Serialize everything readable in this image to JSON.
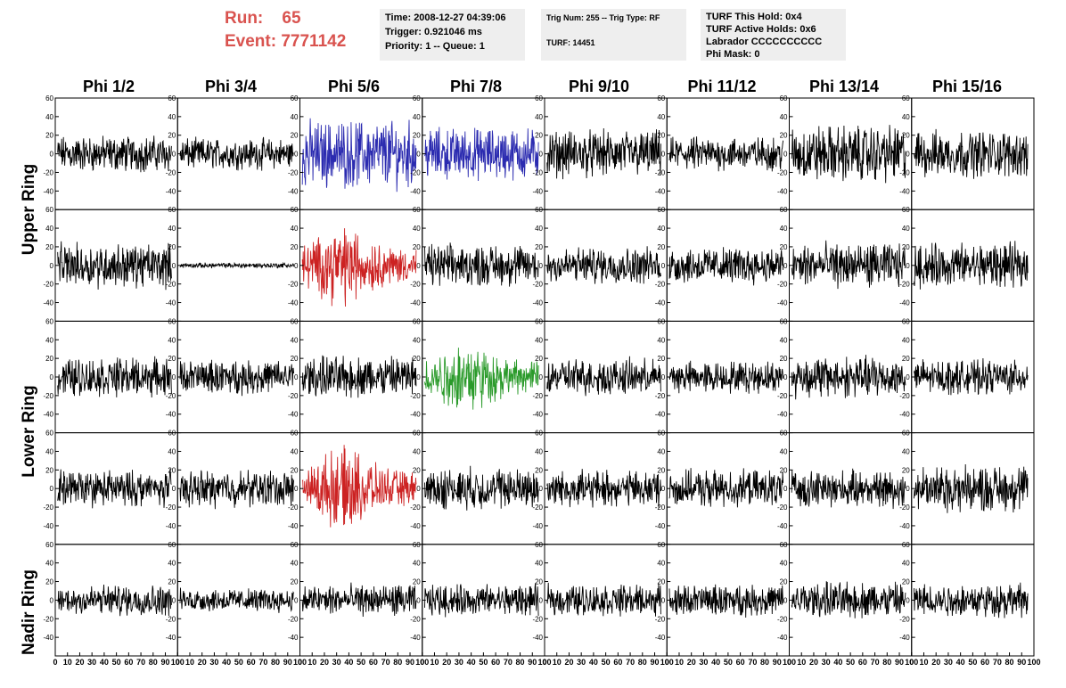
{
  "header": {
    "run_label": "Run:",
    "run_value": "65",
    "event_label": "Event:",
    "event_value": "7771142"
  },
  "info_boxes": {
    "time": "Time: 2008-12-27 04:39:06",
    "trigger": "Trigger: 0.921046 ms",
    "priority": "Priority: 1 -- Queue: 1",
    "trig_num": "Trig Num: 255 -- Trig Type: RF",
    "turf": "TURF: 14451",
    "turf_hold": "TURF This Hold: 0x4",
    "turf_active": "TURF Active Holds: 0x6",
    "labrador": "Labrador CCCCCCCCCC",
    "phi_mask": "Phi Mask: 0"
  },
  "columns": [
    "Phi 1/2",
    "Phi 3/4",
    "Phi 5/6",
    "Phi 7/8",
    "Phi 9/10",
    "Phi 11/12",
    "Phi 13/14",
    "Phi 15/16"
  ],
  "rows": [
    {
      "label": "Upper Ring"
    },
    {
      "label": "Lower Ring"
    },
    {
      "label": "Nadir Ring"
    }
  ],
  "colors": {
    "default": "#000000",
    "blue": "#2b2bb0",
    "red": "#cc2222",
    "green": "#2a9a2a",
    "header_text": "#d9534f",
    "box_bg": "#eeeeee"
  },
  "chart_data": {
    "type": "line",
    "grid_rows": 5,
    "grid_cols": 8,
    "ylim": [
      -60,
      60
    ],
    "xlim": [
      0,
      100
    ],
    "yticks": [
      -40,
      -20,
      0,
      20,
      40,
      60
    ],
    "xticks": [
      0,
      10,
      20,
      30,
      40,
      50,
      60,
      70,
      80,
      90,
      100
    ],
    "xtick_labels": [
      "0",
      "10",
      "20",
      "30",
      "40",
      "50",
      "60",
      "70",
      "80",
      "90",
      "100"
    ],
    "panels": [
      {
        "row": 0,
        "col": 0,
        "amp": 14,
        "color": "default"
      },
      {
        "row": 0,
        "col": 1,
        "amp": 12,
        "color": "default"
      },
      {
        "row": 0,
        "col": 2,
        "amp": 26,
        "color": "blue"
      },
      {
        "row": 0,
        "col": 3,
        "amp": 20,
        "color": "blue"
      },
      {
        "row": 0,
        "col": 4,
        "amp": 18,
        "color": "default"
      },
      {
        "row": 0,
        "col": 5,
        "amp": 13,
        "color": "default"
      },
      {
        "row": 0,
        "col": 6,
        "amp": 22,
        "color": "default"
      },
      {
        "row": 0,
        "col": 7,
        "amp": 18,
        "color": "default"
      },
      {
        "row": 1,
        "col": 0,
        "amp": 17,
        "color": "default"
      },
      {
        "row": 1,
        "col": 1,
        "amp": 2,
        "color": "default"
      },
      {
        "row": 1,
        "col": 2,
        "amp": 22,
        "color": "red"
      },
      {
        "row": 1,
        "col": 3,
        "amp": 16,
        "color": "default"
      },
      {
        "row": 1,
        "col": 4,
        "amp": 14,
        "color": "default"
      },
      {
        "row": 1,
        "col": 5,
        "amp": 14,
        "color": "default"
      },
      {
        "row": 1,
        "col": 6,
        "amp": 17,
        "color": "default"
      },
      {
        "row": 1,
        "col": 7,
        "amp": 17,
        "color": "default"
      },
      {
        "row": 2,
        "col": 0,
        "amp": 15,
        "color": "default"
      },
      {
        "row": 2,
        "col": 1,
        "amp": 13,
        "color": "default"
      },
      {
        "row": 2,
        "col": 2,
        "amp": 16,
        "color": "default"
      },
      {
        "row": 2,
        "col": 3,
        "amp": 20,
        "color": "green"
      },
      {
        "row": 2,
        "col": 4,
        "amp": 14,
        "color": "default"
      },
      {
        "row": 2,
        "col": 5,
        "amp": 12,
        "color": "default"
      },
      {
        "row": 2,
        "col": 6,
        "amp": 16,
        "color": "default"
      },
      {
        "row": 2,
        "col": 7,
        "amp": 13,
        "color": "default"
      },
      {
        "row": 3,
        "col": 0,
        "amp": 14,
        "color": "default"
      },
      {
        "row": 3,
        "col": 1,
        "amp": 14,
        "color": "default"
      },
      {
        "row": 3,
        "col": 2,
        "amp": 22,
        "color": "red"
      },
      {
        "row": 3,
        "col": 3,
        "amp": 16,
        "color": "default"
      },
      {
        "row": 3,
        "col": 4,
        "amp": 14,
        "color": "default"
      },
      {
        "row": 3,
        "col": 5,
        "amp": 14,
        "color": "default"
      },
      {
        "row": 3,
        "col": 6,
        "amp": 14,
        "color": "default"
      },
      {
        "row": 3,
        "col": 7,
        "amp": 18,
        "color": "default"
      },
      {
        "row": 4,
        "col": 0,
        "amp": 12,
        "color": "default"
      },
      {
        "row": 4,
        "col": 1,
        "amp": 9,
        "color": "default"
      },
      {
        "row": 4,
        "col": 2,
        "amp": 12,
        "color": "default"
      },
      {
        "row": 4,
        "col": 3,
        "amp": 12,
        "color": "default"
      },
      {
        "row": 4,
        "col": 4,
        "amp": 12,
        "color": "default"
      },
      {
        "row": 4,
        "col": 5,
        "amp": 12,
        "color": "default"
      },
      {
        "row": 4,
        "col": 6,
        "amp": 14,
        "color": "default"
      },
      {
        "row": 4,
        "col": 7,
        "amp": 13,
        "color": "default"
      }
    ]
  }
}
